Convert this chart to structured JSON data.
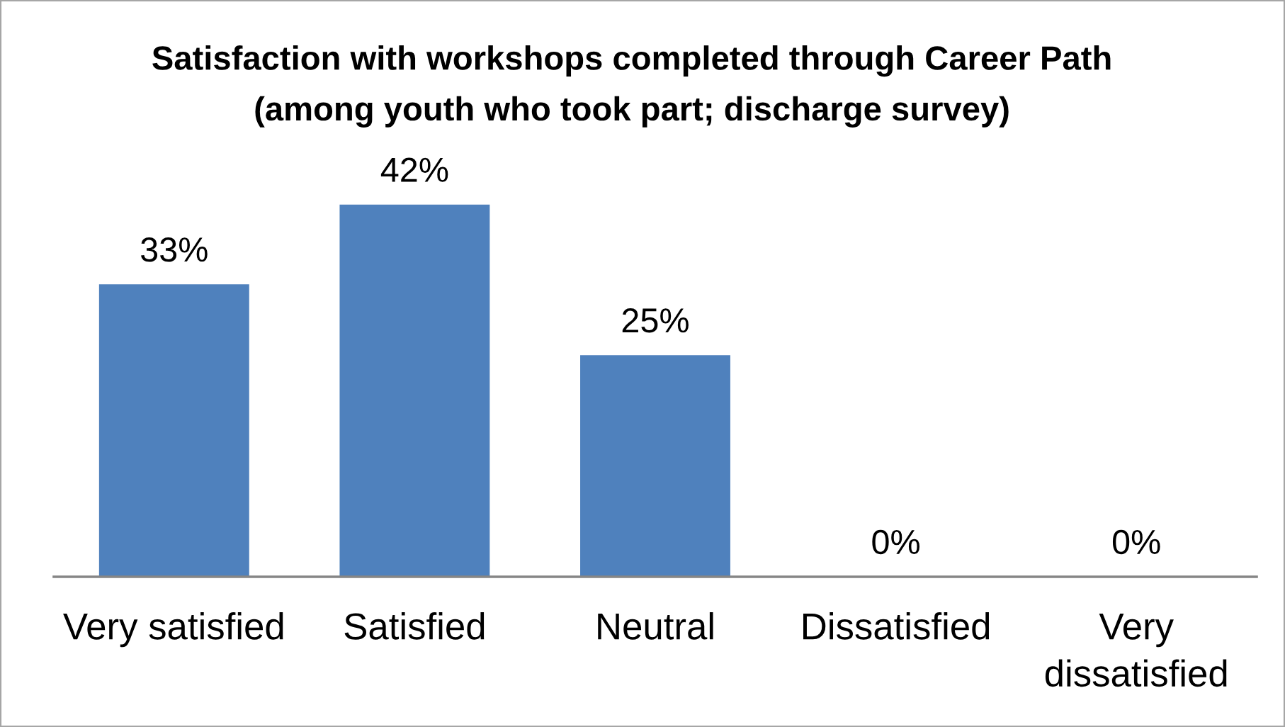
{
  "chart_data": {
    "type": "bar",
    "title": "Satisfaction with workshops completed through Career Path\n(among youth who took part; discharge survey)",
    "categories": [
      "Very satisfied",
      "Satisfied",
      "Neutral",
      "Dissatisfied",
      "Very\ndissatisfied"
    ],
    "values": [
      33,
      42,
      25,
      0,
      0
    ],
    "value_labels": [
      "33%",
      "42%",
      "25%",
      "0%",
      "0%"
    ],
    "color": "#4f81bd",
    "grid": false,
    "legend": false
  }
}
